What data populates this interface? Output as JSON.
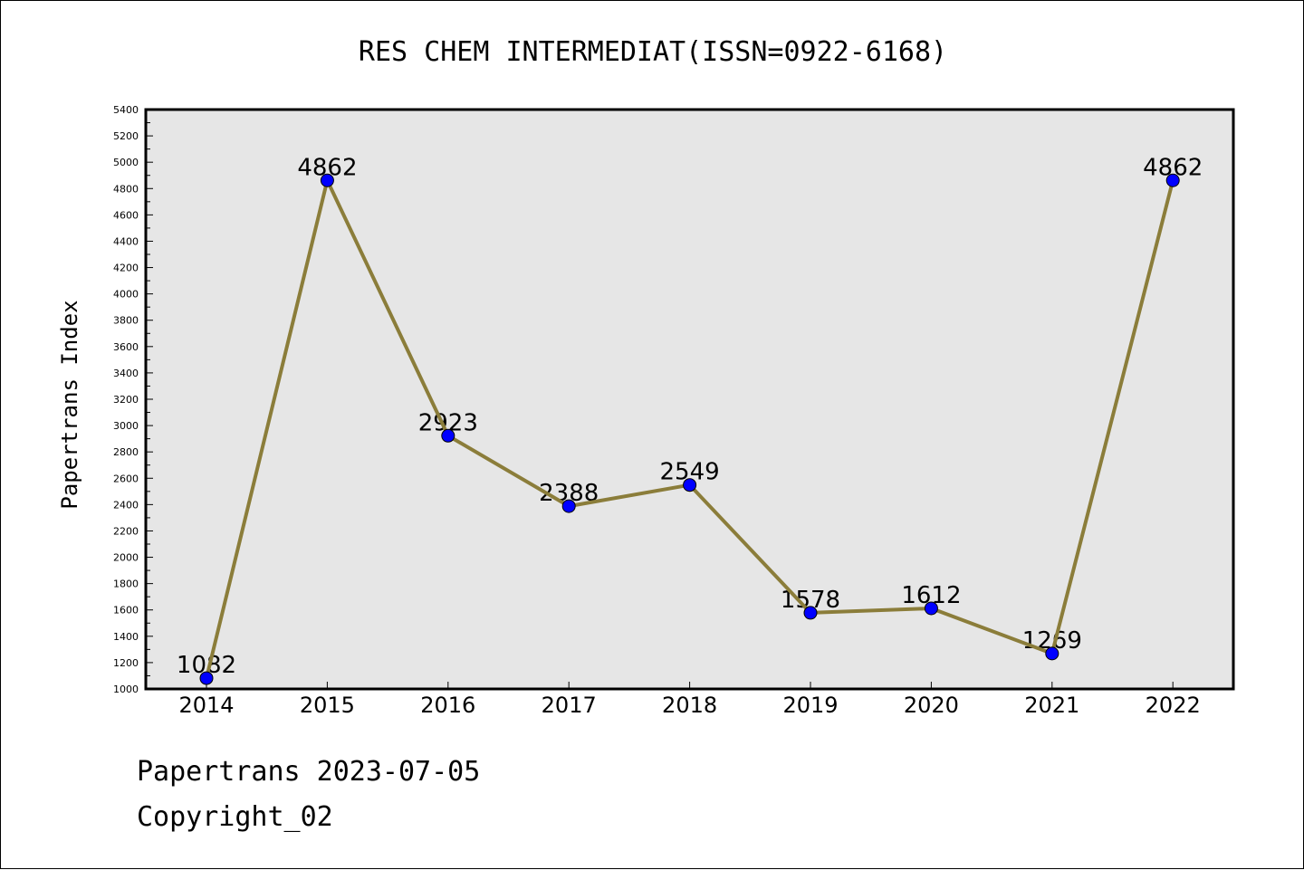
{
  "chart_data": {
    "type": "line",
    "title": "RES CHEM INTERMEDIAT(ISSN=0922-6168)",
    "xlabel": "",
    "ylabel": "Papertrans Index",
    "categories": [
      "2014",
      "2015",
      "2016",
      "2017",
      "2018",
      "2019",
      "2020",
      "2021",
      "2022"
    ],
    "series": [
      {
        "values": [
          1082,
          4862,
          2923,
          2388,
          2549,
          1578,
          1612,
          1269,
          4862
        ]
      }
    ],
    "data_labels": [
      "1082",
      "4862",
      "2923",
      "2388",
      "2549",
      "1578",
      "1612",
      "1269",
      "4862"
    ],
    "ylim": [
      1000,
      5400
    ],
    "y_major_step": 200,
    "y_minor_step": 100,
    "y_tick_labels": [
      "1000",
      "1200",
      "1400",
      "1600",
      "1800",
      "2000",
      "2200",
      "2400",
      "2600",
      "2800",
      "3000",
      "3200",
      "3400",
      "3600",
      "3800",
      "4000",
      "4200",
      "4400",
      "4600",
      "4800",
      "5000",
      "5200",
      "5400"
    ],
    "grid": false,
    "legend": "none",
    "colors": {
      "line": "#8b7d3a",
      "marker": "#0000ff",
      "plot_background": "#e6e6e6",
      "axes": "#000000"
    }
  },
  "footer": {
    "line1": "Papertrans 2023-07-05",
    "line2": "Copyright_02"
  }
}
